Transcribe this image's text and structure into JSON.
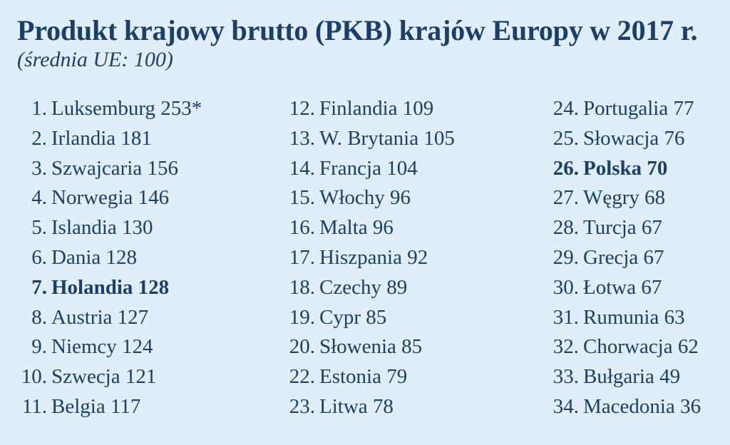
{
  "title": "Produkt krajowy brutto (PKB) krajów Europy w 2017 r.",
  "subtitle": "(średnia UE: 100)",
  "columns": [
    [
      {
        "rank": "1.",
        "text": "Luksemburg 253*",
        "bold": false
      },
      {
        "rank": "2.",
        "text": "Irlandia 181",
        "bold": false
      },
      {
        "rank": "3.",
        "text": "Szwajcaria 156",
        "bold": false
      },
      {
        "rank": "4.",
        "text": "Norwegia 146",
        "bold": false
      },
      {
        "rank": "5.",
        "text": "Islandia 130",
        "bold": false
      },
      {
        "rank": "6.",
        "text": "Dania 128",
        "bold": false
      },
      {
        "rank": "7.",
        "text": "Holandia 128",
        "bold": true
      },
      {
        "rank": "8.",
        "text": "Austria 127",
        "bold": false
      },
      {
        "rank": "9.",
        "text": "Niemcy 124",
        "bold": false
      },
      {
        "rank": "10.",
        "text": "Szwecja 121",
        "bold": false
      },
      {
        "rank": "11.",
        "text": "Belgia 117",
        "bold": false
      }
    ],
    [
      {
        "rank": "12.",
        "text": "Finlandia 109",
        "bold": false
      },
      {
        "rank": "13.",
        "text": "W. Brytania 105",
        "bold": false
      },
      {
        "rank": "14.",
        "text": "Francja 104",
        "bold": false
      },
      {
        "rank": "15.",
        "text": "Włochy 96",
        "bold": false
      },
      {
        "rank": "16.",
        "text": "Malta 96",
        "bold": false
      },
      {
        "rank": "17.",
        "text": "Hiszpania 92",
        "bold": false
      },
      {
        "rank": "18.",
        "text": "Czechy 89",
        "bold": false
      },
      {
        "rank": "19.",
        "text": "Cypr 85",
        "bold": false
      },
      {
        "rank": "20.",
        "text": "Słowenia 85",
        "bold": false
      },
      {
        "rank": "22.",
        "text": "Estonia 79",
        "bold": false
      },
      {
        "rank": "23.",
        "text": "Litwa 78",
        "bold": false
      }
    ],
    [
      {
        "rank": "24.",
        "text": "Portugalia 77",
        "bold": false
      },
      {
        "rank": "25.",
        "text": "Słowacja 76",
        "bold": false
      },
      {
        "rank": "26.",
        "text": "Polska 70",
        "bold": true
      },
      {
        "rank": "27.",
        "text": "Węgry 68",
        "bold": false
      },
      {
        "rank": "28.",
        "text": "Turcja 67",
        "bold": false
      },
      {
        "rank": "29.",
        "text": "Grecja 67",
        "bold": false
      },
      {
        "rank": "30.",
        "text": "Łotwa 67",
        "bold": false
      },
      {
        "rank": "31.",
        "text": "Rumunia 63",
        "bold": false
      },
      {
        "rank": "32.",
        "text": "Chorwacja 62",
        "bold": false
      },
      {
        "rank": "33.",
        "text": "Bułgaria 49",
        "bold": false
      },
      {
        "rank": "34.",
        "text": "Macedonia 36",
        "bold": false
      }
    ]
  ],
  "colors": {
    "background": "#dfeef8",
    "text": "#1b3f6b"
  }
}
